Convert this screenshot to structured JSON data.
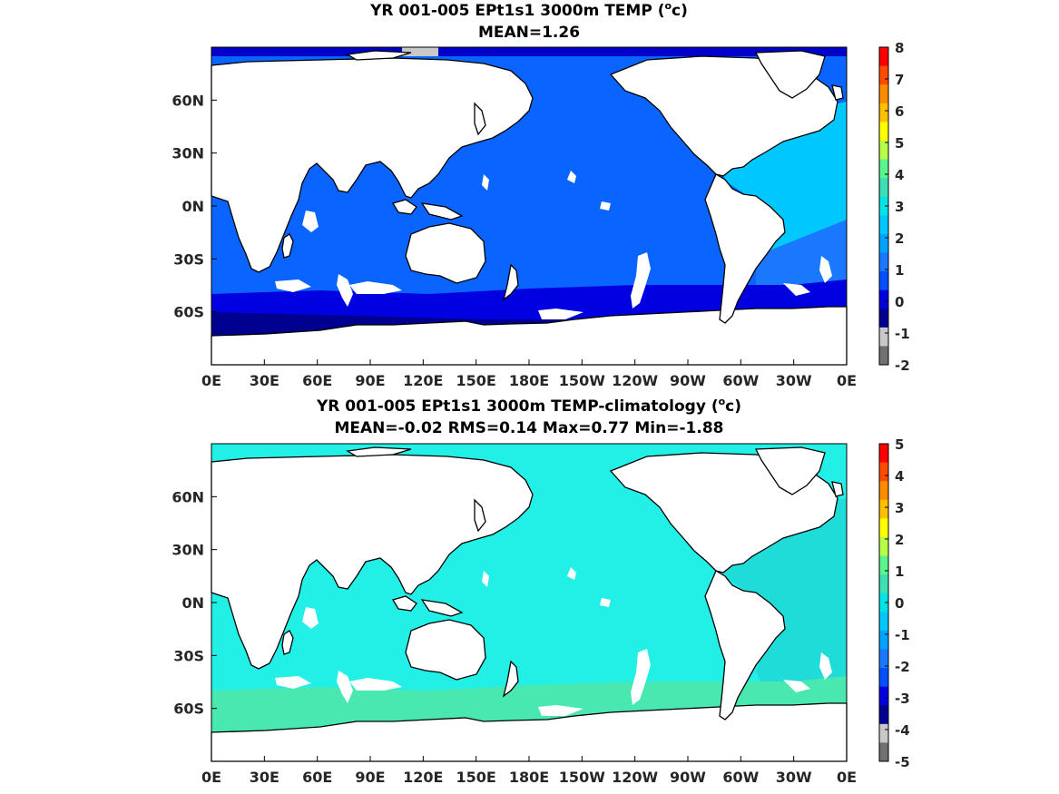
{
  "chart_data": [
    {
      "type": "heatmap",
      "title_line1": "YR 001-005 EPt1s1 3000m TEMP (",
      "title_sup": "o",
      "title_unit": "c)",
      "subtitle": "MEAN=1.26",
      "x_ticks": [
        "0E",
        "30E",
        "60E",
        "90E",
        "120E",
        "150E",
        "180E",
        "150W",
        "120W",
        "90W",
        "60W",
        "30W",
        "0E"
      ],
      "y_ticks": [
        "60N",
        "30N",
        "0N",
        "30S",
        "60S"
      ],
      "colorbar_ticks": [
        "8",
        "7",
        "6",
        "5",
        "4",
        "3",
        "2",
        "1",
        "0",
        "-1",
        "-2"
      ],
      "colorbar_colors": [
        "#ff0000",
        "#ff4a00",
        "#ff8c00",
        "#ffc000",
        "#ffff00",
        "#b8ff4a",
        "#5af58c",
        "#3ce0b4",
        "#00e4e8",
        "#00c8ff",
        "#00a4ff",
        "#1a78ff",
        "#0050ff",
        "#0000e0",
        "#000090",
        "#c8c8c8",
        "#707070"
      ],
      "regions": {
        "deep_south": "#000090",
        "south": "#0000e0",
        "pacific_indian": "#0a64ff",
        "atlantic": "#00c8ff",
        "atlantic_deep": "#1a78ff",
        "land": "#ffffff",
        "arctic": "#0000c8"
      }
    },
    {
      "type": "heatmap",
      "title_line1": "YR 001-005 EPt1s1 3000m TEMP-climatology (",
      "title_sup": "o",
      "title_unit": "c)",
      "subtitle": "MEAN=-0.02   RMS=0.14   Max=0.77   Min=-1.88",
      "x_ticks": [
        "0E",
        "30E",
        "60E",
        "90E",
        "120E",
        "150E",
        "180E",
        "150W",
        "120W",
        "90W",
        "60W",
        "30W",
        "0E"
      ],
      "y_ticks": [
        "60N",
        "30N",
        "0N",
        "30S",
        "60S"
      ],
      "colorbar_ticks": [
        "5",
        "4",
        "3",
        "2",
        "1",
        "0",
        "-1",
        "-2",
        "-3",
        "-4",
        "-5"
      ],
      "colorbar_colors": [
        "#ff0000",
        "#ff4a00",
        "#ff8c00",
        "#ffc000",
        "#ffff00",
        "#b8ff4a",
        "#5af58c",
        "#3ce0b4",
        "#00e4e8",
        "#00c8ff",
        "#00a4ff",
        "#1a78ff",
        "#0050ff",
        "#0000e0",
        "#000090",
        "#c8c8c8",
        "#707070"
      ],
      "regions": {
        "main": "#22f0e6",
        "south": "#48e8b0",
        "atlantic": "#20dcd8",
        "land": "#ffffff"
      }
    }
  ]
}
